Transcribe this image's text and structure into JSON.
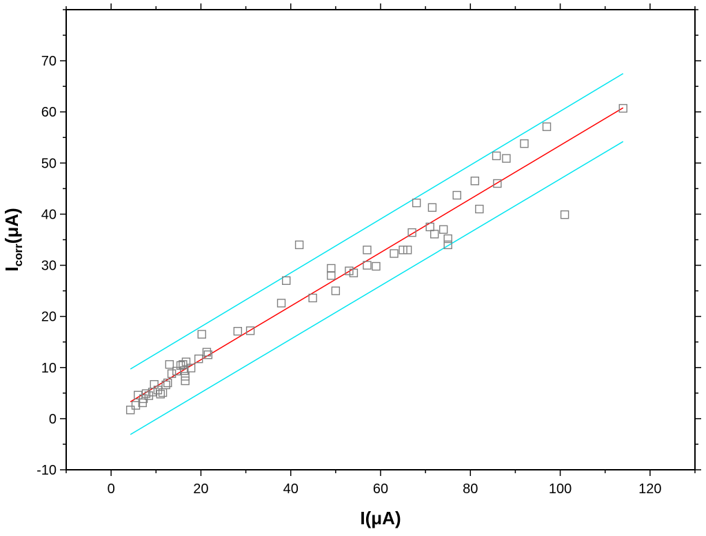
{
  "chart_data": {
    "type": "scatter",
    "title": "",
    "xlabel": "I(μA)",
    "ylabel": "I_corr(μA)",
    "ylabel_main": "I",
    "ylabel_sub": "corr",
    "ylabel_tail": "(μA)",
    "xlim": [
      -10,
      130
    ],
    "ylim": [
      -10,
      80
    ],
    "xticks": [
      0,
      20,
      40,
      60,
      80,
      100,
      120
    ],
    "yticks": [
      -10,
      0,
      10,
      20,
      30,
      40,
      50,
      60,
      70
    ],
    "grid": false,
    "legend": "none",
    "series": [
      {
        "marker": "square",
        "color": "#808080",
        "points": [
          [
            4.3,
            1.7
          ],
          [
            5.5,
            2.6
          ],
          [
            6.0,
            4.6
          ],
          [
            7.0,
            3.1
          ],
          [
            7.2,
            3.9
          ],
          [
            7.8,
            4.9
          ],
          [
            8.4,
            4.5
          ],
          [
            9.2,
            5.2
          ],
          [
            9.6,
            6.7
          ],
          [
            10.4,
            5.6
          ],
          [
            11.0,
            4.8
          ],
          [
            11.5,
            5.1
          ],
          [
            12.2,
            6.6
          ],
          [
            12.6,
            7.0
          ],
          [
            13.0,
            10.6
          ],
          [
            13.5,
            8.8
          ],
          [
            14.6,
            9.3
          ],
          [
            15.5,
            10.4
          ],
          [
            16.0,
            10.6
          ],
          [
            16.3,
            9.4
          ],
          [
            16.5,
            8.3
          ],
          [
            16.5,
            7.4
          ],
          [
            16.7,
            11.1
          ],
          [
            17.8,
            9.9
          ],
          [
            19.5,
            11.7
          ],
          [
            20.2,
            16.5
          ],
          [
            21.3,
            13.0
          ],
          [
            21.6,
            12.5
          ],
          [
            28.2,
            17.1
          ],
          [
            31.0,
            17.2
          ],
          [
            37.9,
            22.6
          ],
          [
            39.0,
            27.0
          ],
          [
            41.9,
            34.0
          ],
          [
            44.9,
            23.6
          ],
          [
            49.0,
            29.4
          ],
          [
            49.0,
            28.0
          ],
          [
            50.0,
            25.0
          ],
          [
            53.0,
            28.9
          ],
          [
            54.0,
            28.5
          ],
          [
            57.0,
            33.0
          ],
          [
            57.0,
            30.0
          ],
          [
            59.0,
            29.8
          ],
          [
            63.0,
            32.3
          ],
          [
            65.0,
            33.0
          ],
          [
            66.0,
            33.0
          ],
          [
            67.0,
            36.4
          ],
          [
            68.0,
            42.2
          ],
          [
            71.0,
            37.5
          ],
          [
            71.5,
            41.3
          ],
          [
            72.0,
            36.1
          ],
          [
            74.0,
            37.0
          ],
          [
            75.0,
            35.2
          ],
          [
            75.0,
            34.0
          ],
          [
            77.0,
            43.7
          ],
          [
            81.0,
            46.5
          ],
          [
            82.0,
            41.0
          ],
          [
            85.8,
            51.4
          ],
          [
            86.0,
            46.0
          ],
          [
            88.0,
            50.9
          ],
          [
            92.0,
            53.8
          ],
          [
            97.0,
            57.1
          ],
          [
            101.0,
            39.9
          ],
          [
            114.0,
            60.7
          ]
        ]
      },
      {
        "type": "line",
        "role": "fit",
        "color": "#ff0000",
        "points": [
          [
            4.3,
            3.3
          ],
          [
            114.0,
            60.8
          ]
        ]
      },
      {
        "type": "line",
        "role": "upper-band",
        "color": "#00e5f0",
        "points": [
          [
            4.3,
            9.7
          ],
          [
            114.0,
            67.5
          ]
        ]
      },
      {
        "type": "line",
        "role": "lower-band",
        "color": "#00e5f0",
        "points": [
          [
            4.3,
            -3.1
          ],
          [
            114.0,
            54.2
          ]
        ]
      }
    ]
  }
}
